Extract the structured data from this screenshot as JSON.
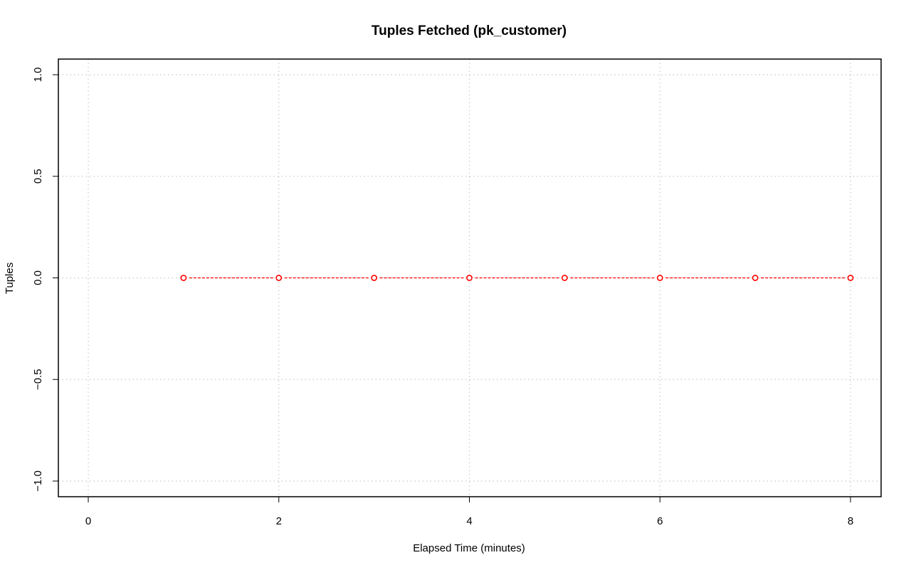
{
  "chart_data": {
    "type": "line",
    "title": "Tuples Fetched (pk_customer)",
    "xlabel": "Elapsed Time (minutes)",
    "ylabel": "Tuples",
    "xlim": [
      0,
      8
    ],
    "ylim": [
      -1,
      1
    ],
    "x_ticks": [
      0,
      2,
      4,
      6,
      8
    ],
    "x_tick_labels": [
      "0",
      "2",
      "4",
      "6",
      "8"
    ],
    "y_ticks": [
      -1.0,
      -0.5,
      0.0,
      0.5,
      1.0
    ],
    "y_tick_labels": [
      "−1.0",
      "−0.5",
      "0.0",
      "0.5",
      "1.0"
    ],
    "grid": true,
    "grid_x": [
      0,
      2,
      4,
      6,
      8
    ],
    "series": [
      {
        "name": "pk_customer",
        "color": "#ff0000",
        "line_style": "dashed",
        "marker": "open-circle",
        "x": [
          1,
          2,
          3,
          4,
          5,
          6,
          7,
          8
        ],
        "values": [
          0,
          0,
          0,
          0,
          0,
          0,
          0,
          0
        ]
      }
    ]
  }
}
